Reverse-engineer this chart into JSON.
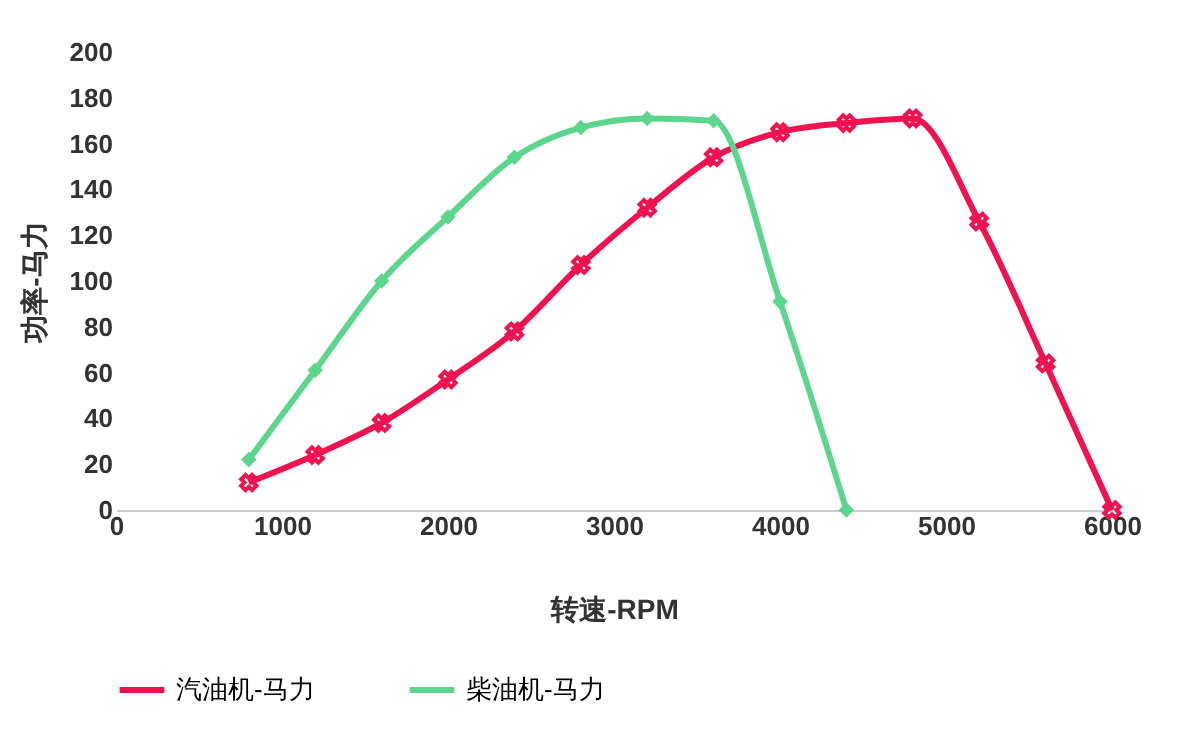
{
  "chart_data": {
    "type": "line",
    "xlabel": "转速-RPM",
    "ylabel": "功率-马力",
    "x": [
      800,
      1200,
      1600,
      2000,
      2400,
      2800,
      3200,
      3600,
      4000,
      4400,
      4800,
      5200,
      5600,
      6000
    ],
    "series": [
      {
        "name": "汽油机-马力",
        "color": "#f2124f",
        "marker": "cross",
        "values": [
          12,
          24,
          38,
          57,
          78,
          107,
          132,
          154,
          165,
          169,
          171,
          126,
          64,
          0
        ]
      },
      {
        "name": "柴油机-马力",
        "color": "#5bd68c",
        "marker": "diamond",
        "x": [
          800,
          1200,
          1600,
          2000,
          2400,
          2800,
          3200,
          3600,
          4000,
          4400
        ],
        "values": [
          22,
          61,
          100,
          128,
          154,
          167,
          171,
          170,
          91,
          0
        ]
      }
    ],
    "xlim": [
      0,
      6000
    ],
    "xticks": [
      0,
      1000,
      2000,
      3000,
      4000,
      5000,
      6000
    ],
    "ylim": [
      0,
      200
    ],
    "yticks": [
      0,
      20,
      40,
      60,
      80,
      100,
      120,
      140,
      160,
      180,
      200
    ],
    "grid": false,
    "legend": "bottom",
    "line_style": "solid"
  }
}
